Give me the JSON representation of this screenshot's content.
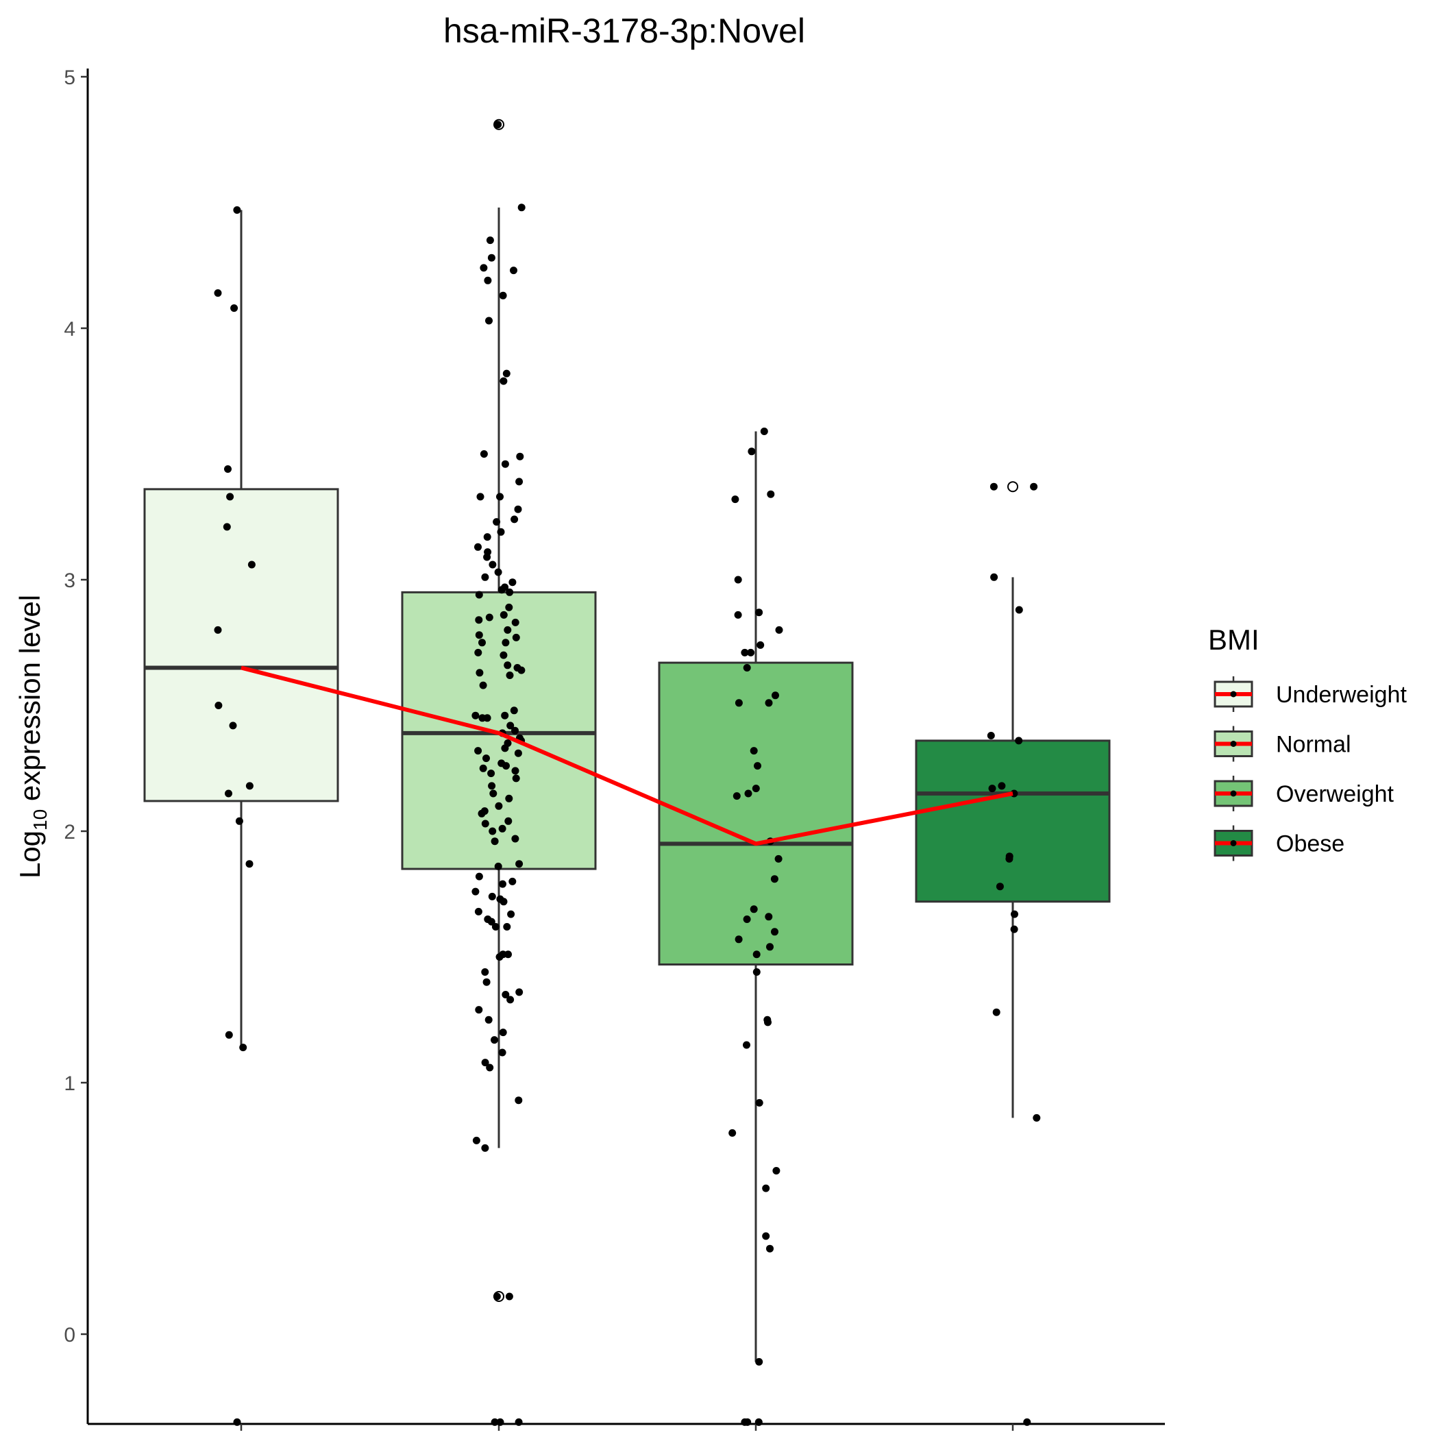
{
  "chart_data": {
    "type": "box",
    "title": "hsa-miR-3178-3p:Novel",
    "ylabel": {
      "base": "Log",
      "subscript": "10",
      "rest": " expression level"
    },
    "xlabel": "",
    "ylim": [
      -0.35,
      5.05
    ],
    "yticks": [
      0,
      1,
      2,
      3,
      4,
      5
    ],
    "grid": false,
    "legend": {
      "title": "BMI",
      "position": "right",
      "entries": [
        "Underweight",
        "Normal",
        "Overweight",
        "Obese"
      ]
    },
    "colors": {
      "fills": [
        "#edf8e9",
        "#bae4b3",
        "#74c476",
        "#238b45"
      ],
      "border": "#333333",
      "mean_line": "#ff0000",
      "point": "#000000"
    },
    "boxes": [
      {
        "name": "Underweight",
        "lower_whisker": 1.14,
        "q1": 2.12,
        "median": 2.65,
        "q3": 3.36,
        "upper_whisker": 4.47,
        "outliers": []
      },
      {
        "name": "Normal",
        "lower_whisker": 0.74,
        "q1": 1.85,
        "median": 2.39,
        "q3": 2.95,
        "upper_whisker": 4.48,
        "outliers": [
          4.81,
          0.15
        ]
      },
      {
        "name": "Overweight",
        "lower_whisker": -0.11,
        "q1": 1.47,
        "median": 1.95,
        "q3": 2.67,
        "upper_whisker": 3.59,
        "outliers": []
      },
      {
        "name": "Obese",
        "lower_whisker": 0.86,
        "q1": 1.72,
        "median": 2.15,
        "q3": 2.36,
        "upper_whisker": 3.01,
        "outliers": [
          3.37
        ]
      }
    ],
    "line": {
      "name": "median trend",
      "values": [
        2.65,
        2.39,
        1.95,
        2.15
      ]
    },
    "points": [
      {
        "group": 0,
        "values": [
          4.47,
          4.14,
          4.08,
          3.44,
          3.33,
          3.21,
          3.06,
          2.8,
          2.5,
          2.42,
          2.18,
          2.15,
          2.04,
          1.87,
          1.19,
          1.14,
          -0.35
        ]
      },
      {
        "group": 1,
        "values": [
          4.81,
          4.48,
          4.35,
          4.28,
          4.24,
          4.23,
          4.19,
          4.13,
          4.03,
          3.82,
          3.79,
          3.5,
          3.49,
          3.46,
          3.39,
          3.33,
          3.33,
          3.28,
          3.24,
          3.23,
          3.19,
          3.17,
          3.13,
          3.11,
          3.09,
          3.06,
          3.03,
          3.01,
          2.99,
          2.97,
          2.96,
          2.95,
          2.94,
          2.89,
          2.86,
          2.85,
          2.84,
          2.83,
          2.8,
          2.78,
          2.77,
          2.75,
          2.75,
          2.71,
          2.7,
          2.66,
          2.65,
          2.64,
          2.63,
          2.62,
          2.58,
          2.48,
          2.46,
          2.46,
          2.45,
          2.45,
          2.42,
          2.4,
          2.39,
          2.37,
          2.36,
          2.35,
          2.33,
          2.32,
          2.31,
          2.29,
          2.27,
          2.26,
          2.25,
          2.24,
          2.23,
          2.21,
          2.18,
          2.15,
          2.13,
          2.1,
          2.08,
          2.07,
          2.04,
          2.03,
          2.01,
          2.0,
          1.97,
          1.96,
          1.87,
          1.86,
          1.82,
          1.8,
          1.79,
          1.76,
          1.74,
          1.73,
          1.72,
          1.68,
          1.67,
          1.65,
          1.64,
          1.62,
          1.62,
          1.51,
          1.51,
          1.5,
          1.44,
          1.4,
          1.36,
          1.35,
          1.33,
          1.29,
          1.25,
          1.2,
          1.17,
          1.12,
          1.08,
          1.06,
          0.93,
          0.77,
          0.74,
          0.15,
          0.15,
          -0.35,
          -0.35,
          -0.35
        ]
      },
      {
        "group": 2,
        "values": [
          3.59,
          3.51,
          3.34,
          3.32,
          3.0,
          2.87,
          2.86,
          2.8,
          2.74,
          2.71,
          2.71,
          2.65,
          2.54,
          2.51,
          2.51,
          2.32,
          2.26,
          2.17,
          2.15,
          2.14,
          1.96,
          1.89,
          1.81,
          1.69,
          1.66,
          1.65,
          1.6,
          1.57,
          1.54,
          1.51,
          1.44,
          1.25,
          1.24,
          1.15,
          0.92,
          0.8,
          0.65,
          0.58,
          0.39,
          0.34,
          -0.11,
          -0.35,
          -0.35,
          -0.35
        ]
      },
      {
        "group": 3,
        "values": [
          3.37,
          3.37,
          3.01,
          2.88,
          2.38,
          2.36,
          2.18,
          2.17,
          2.15,
          1.9,
          1.89,
          1.78,
          1.67,
          1.61,
          1.28,
          0.86,
          -0.35
        ]
      }
    ]
  }
}
